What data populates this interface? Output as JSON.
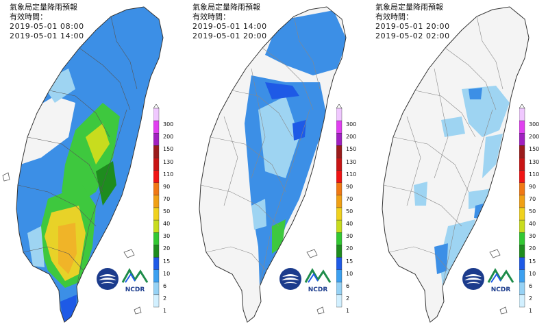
{
  "panels": [
    {
      "title": "氣象局定量降雨預報",
      "valid_label": "有效時間：",
      "time_start": "2019-05-01 08:00",
      "time_end": "2019-05-01 14:00"
    },
    {
      "title": "氣象局定量降雨預報",
      "valid_label": "有效時間：",
      "time_start": "2019-05-01 14:00",
      "time_end": "2019-05-01 20:00"
    },
    {
      "title": "氣象局定量降雨預報",
      "valid_label": "有效時間：",
      "time_start": "2019-05-01 20:00",
      "time_end": "2019-05-02 02:00"
    }
  ],
  "legend": {
    "levels": [
      "300",
      "200",
      "150",
      "130",
      "110",
      "90",
      "70",
      "50",
      "40",
      "30",
      "20",
      "15",
      "10",
      "6",
      "2",
      "1"
    ],
    "colors": [
      "#ffffff",
      "#f0c8ff",
      "#e040f0",
      "#a020c0",
      "#9b1b1b",
      "#c81414",
      "#f01414",
      "#f07814",
      "#f0a014",
      "#f0d21e",
      "#c8dc1e",
      "#32c832",
      "#1e8c1e",
      "#1e5ae6",
      "#3ca0f0",
      "#96d2f5",
      "#d2f0ff"
    ]
  },
  "logos": {
    "ncdr_text": "NCDR"
  },
  "colors": {
    "light": "#9ed4f2",
    "mid": "#3c8fe6",
    "dark": "#1e5ae6",
    "green": "#3ec83e",
    "darkgreen": "#1e8c1e",
    "yellow": "#e8d228",
    "orange": "#f0b428"
  }
}
